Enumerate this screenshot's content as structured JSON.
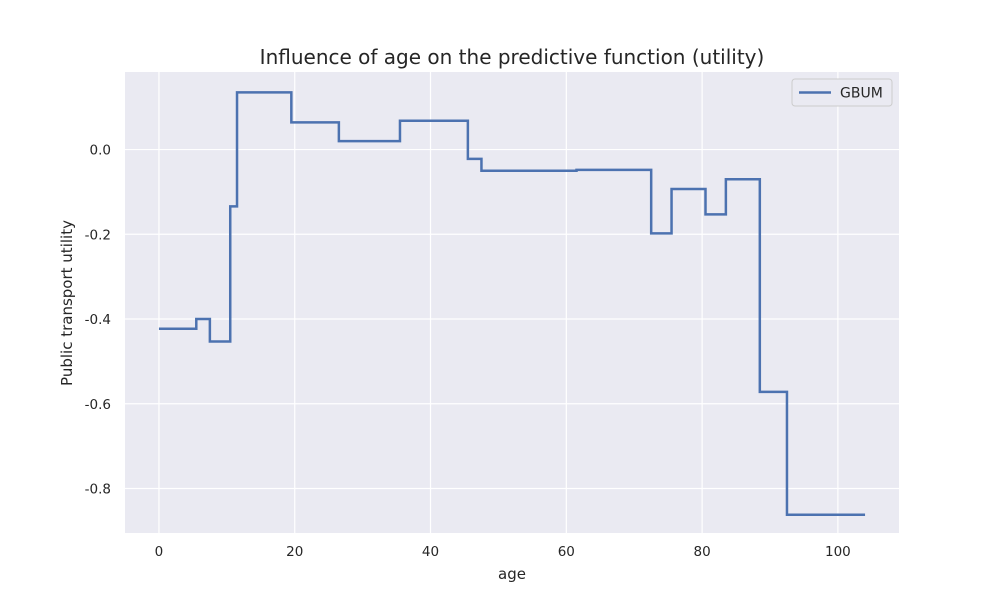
{
  "chart_data": {
    "type": "line",
    "title": "Influence of age on the predictive function (utility)",
    "xlabel": "age",
    "ylabel": "Public transport utility",
    "xlim": [
      -5,
      109
    ],
    "ylim": [
      -0.905,
      0.183
    ],
    "xticks": [
      0,
      20,
      40,
      60,
      80,
      100
    ],
    "yticks": [
      0.0,
      -0.2,
      -0.4,
      -0.6,
      -0.8
    ],
    "ytick_labels": [
      "0.0",
      "-0.2",
      "-0.4",
      "-0.6",
      "-0.8"
    ],
    "grid": true,
    "legend_position": "top-right",
    "series": [
      {
        "name": "GBUM",
        "color": "#4c72b0",
        "drawstyle": "steps-post",
        "x": [
          0,
          5.5,
          7.5,
          10.5,
          11.5,
          19.5,
          26.5,
          35.5,
          45.5,
          47.5,
          61.5,
          72.5,
          75.5,
          80.5,
          83.5,
          88.5,
          92.5,
          104
        ],
        "y": [
          -0.423,
          -0.4,
          -0.453,
          -0.134,
          0.135,
          0.064,
          0.02,
          0.068,
          -0.022,
          -0.05,
          -0.048,
          -0.198,
          -0.093,
          -0.153,
          -0.07,
          -0.572,
          -0.862,
          -0.862
        ]
      }
    ]
  },
  "theme": {
    "plot_background": "#eaeaf2",
    "grid_color": "#ffffff",
    "text_color": "#262626"
  }
}
